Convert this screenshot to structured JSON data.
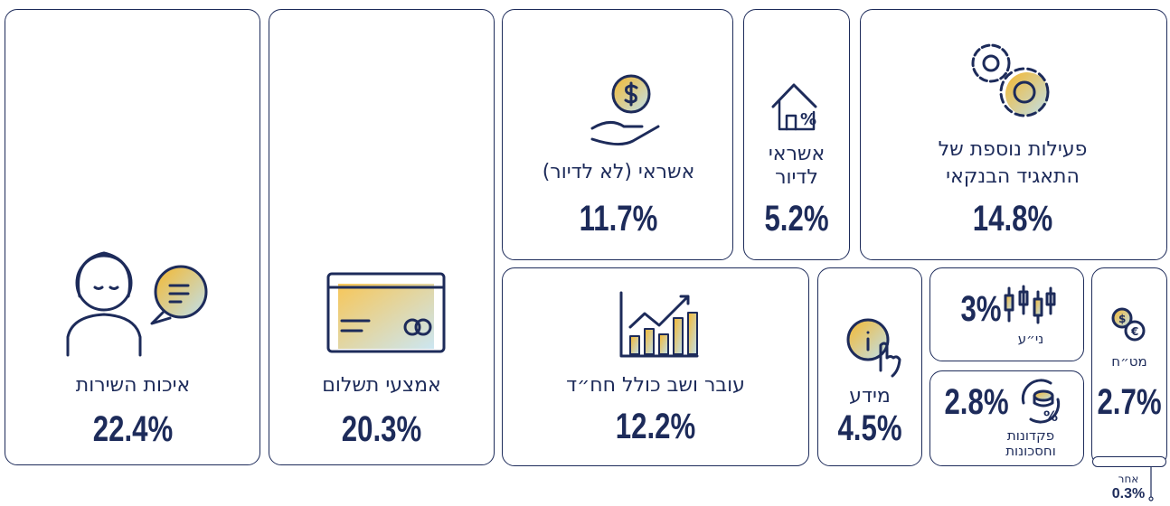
{
  "tiles": [
    {
      "label": [
        "איכות השירות"
      ],
      "value": "22.4%"
    },
    {
      "label": [
        "אמצעי תשלום"
      ],
      "value": "20.3%"
    },
    {
      "label": [
        "אשראי (לא לדיור)"
      ],
      "value": "11.7%"
    },
    {
      "label": [
        "אשראי",
        "לדיור"
      ],
      "value": "5.2%"
    },
    {
      "label": [
        "פעילות נוספת של",
        "התאגיד הבנקאי"
      ],
      "value": "14.8%"
    },
    {
      "label": [
        "עובר ושב כולל חח״ד"
      ],
      "value": "12.2%"
    },
    {
      "label": [
        "מידע"
      ],
      "value": "4.5%"
    },
    {
      "label": [
        "ני״ע"
      ],
      "value": "3%"
    },
    {
      "label": [
        "פקדונות",
        "וחסכונות"
      ],
      "value": "2.8%"
    },
    {
      "label": [
        "מט״ח"
      ],
      "value": "2.7%"
    },
    {
      "label": [
        "אחר"
      ],
      "value": "0.3%"
    }
  ]
}
